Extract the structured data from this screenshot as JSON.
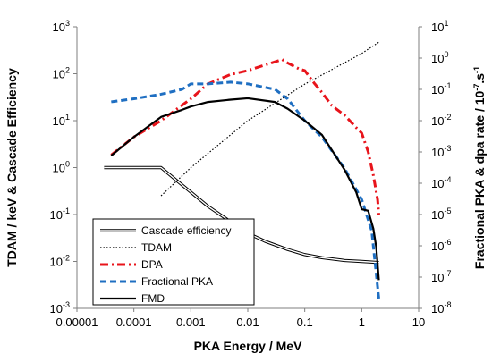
{
  "chart_data": {
    "type": "line",
    "x_axis": {
      "title": "PKA Energy / MeV",
      "scale": "log",
      "range": [
        1e-05,
        10
      ],
      "ticks": [
        1e-05,
        0.0001,
        0.001,
        0.01,
        0.1,
        1,
        10
      ],
      "tick_labels": [
        "0.00001",
        "0.0001",
        "0.001",
        "0.01",
        "0.1",
        "1",
        "10"
      ]
    },
    "y_axis_left": {
      "title": "TDAM / keV & Cascade Efficiency",
      "scale": "log",
      "range": [
        0.001,
        1000
      ],
      "ticks": [
        0.001,
        0.01,
        0.1,
        1,
        10,
        100,
        1000
      ],
      "tick_base": "10",
      "tick_exponents": [
        "-3",
        "-2",
        "-1",
        "0",
        "1",
        "2",
        "3"
      ]
    },
    "y_axis_right": {
      "title_main": "Fractional PKA & dpa rate / 10",
      "title_sup": "-7",
      "title_tail": ".s",
      "title_sup2": "-1",
      "scale": "log",
      "range": [
        1e-08,
        10
      ],
      "ticks": [
        1e-08,
        1e-07,
        1e-06,
        1e-05,
        0.0001,
        0.001,
        0.01,
        0.1,
        1,
        10
      ],
      "tick_base": "10",
      "tick_exponents": [
        "-8",
        "-7",
        "-6",
        "-5",
        "-4",
        "-3",
        "-2",
        "-1",
        "0",
        "1"
      ]
    },
    "grid": false,
    "legend": {
      "placement": "bottom-left",
      "entries": [
        "Cascade efficiency",
        "TDAM",
        "DPA",
        "Fractional PKA",
        "FMD"
      ]
    },
    "series": [
      {
        "name": "Cascade efficiency",
        "axis": "left",
        "color": "#000000",
        "style": "double",
        "points": [
          [
            3e-05,
            1.0
          ],
          [
            0.00012,
            1.0
          ],
          [
            0.0003,
            1.0
          ],
          [
            0.0005,
            0.6
          ],
          [
            0.001,
            0.3
          ],
          [
            0.002,
            0.15
          ],
          [
            0.005,
            0.07
          ],
          [
            0.01,
            0.04
          ],
          [
            0.02,
            0.027
          ],
          [
            0.05,
            0.018
          ],
          [
            0.1,
            0.014
          ],
          [
            0.2,
            0.012
          ],
          [
            0.5,
            0.0105
          ],
          [
            1,
            0.01
          ],
          [
            2,
            0.0095
          ]
        ]
      },
      {
        "name": "TDAM",
        "axis": "left",
        "color": "#000000",
        "style": "dotted",
        "points": [
          [
            0.0003,
            0.25
          ],
          [
            0.001,
            1.0
          ],
          [
            0.01,
            10.0
          ],
          [
            0.1,
            60.0
          ],
          [
            1,
            270.0
          ],
          [
            2,
            470.0
          ]
        ]
      },
      {
        "name": "DPA",
        "axis": "right",
        "color": "#e8141b",
        "style": "dashdot",
        "points": [
          [
            4e-05,
            0.0008
          ],
          [
            0.0001,
            0.003
          ],
          [
            0.0003,
            0.01
          ],
          [
            0.001,
            0.05
          ],
          [
            0.002,
            0.15
          ],
          [
            0.005,
            0.3
          ],
          [
            0.01,
            0.4
          ],
          [
            0.02,
            0.6
          ],
          [
            0.04,
            0.9
          ],
          [
            0.05,
            0.7
          ],
          [
            0.08,
            0.45
          ],
          [
            0.1,
            0.4
          ],
          [
            0.15,
            0.15
          ],
          [
            0.2,
            0.08
          ],
          [
            0.3,
            0.03
          ],
          [
            0.5,
            0.015
          ],
          [
            0.8,
            0.006
          ],
          [
            1.0,
            0.004
          ],
          [
            1.3,
            0.001
          ],
          [
            1.6,
            0.00018
          ],
          [
            1.9,
            3e-05
          ],
          [
            2.0,
            1e-05
          ]
        ]
      },
      {
        "name": "Fractional PKA",
        "axis": "right",
        "color": "#1f6fc2",
        "style": "dashed",
        "points": [
          [
            4e-05,
            0.04
          ],
          [
            0.0001,
            0.05
          ],
          [
            0.0003,
            0.07
          ],
          [
            0.0007,
            0.1
          ],
          [
            0.001,
            0.15
          ],
          [
            0.002,
            0.15
          ],
          [
            0.005,
            0.17
          ],
          [
            0.01,
            0.15
          ],
          [
            0.03,
            0.1
          ],
          [
            0.05,
            0.05
          ],
          [
            0.1,
            0.01
          ],
          [
            0.2,
            0.003
          ],
          [
            0.5,
            0.0003
          ],
          [
            1,
            3e-05
          ],
          [
            1.5,
            3e-06
          ],
          [
            2.0,
            2e-08
          ]
        ]
      },
      {
        "name": "FMD",
        "axis": "left",
        "color": "#000000",
        "style": "solid",
        "points": [
          [
            4e-05,
            1.8
          ],
          [
            0.0001,
            4.5
          ],
          [
            0.0003,
            12.0
          ],
          [
            0.0007,
            17.0
          ],
          [
            0.001,
            20.0
          ],
          [
            0.002,
            25.0
          ],
          [
            0.005,
            28.0
          ],
          [
            0.01,
            30.0
          ],
          [
            0.03,
            25.0
          ],
          [
            0.05,
            18.0
          ],
          [
            0.1,
            10.0
          ],
          [
            0.2,
            5.0
          ],
          [
            0.5,
            0.9
          ],
          [
            0.8,
            0.3
          ],
          [
            1.0,
            0.13
          ],
          [
            1.3,
            0.12
          ],
          [
            1.6,
            0.05
          ],
          [
            1.8,
            0.02
          ],
          [
            2.0,
            0.004
          ]
        ]
      }
    ]
  }
}
